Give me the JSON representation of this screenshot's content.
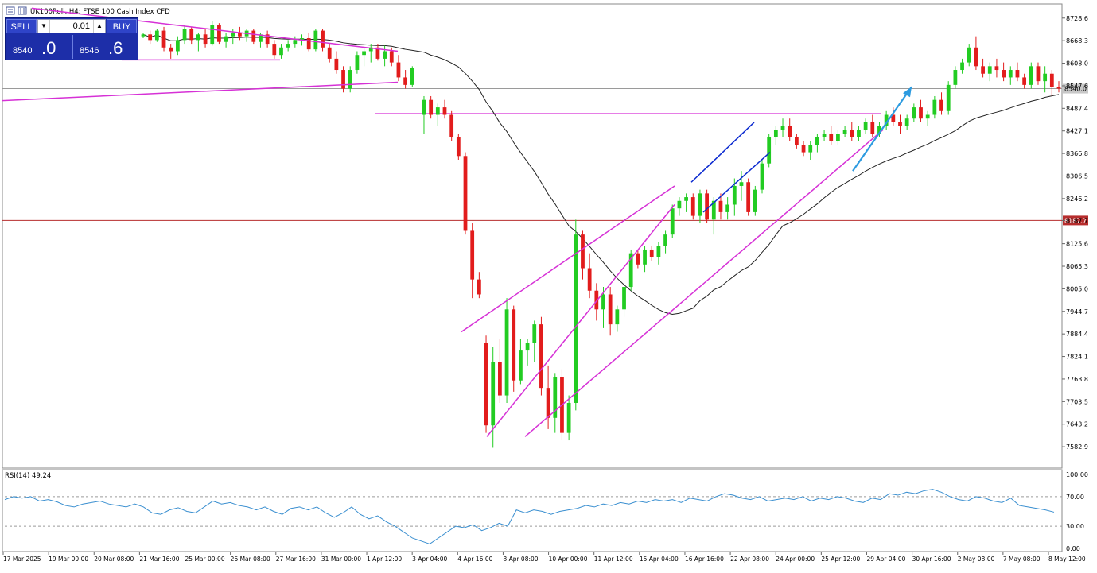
{
  "window": {
    "title": "UK100Roll, H4: FTSE 100 Cash Index CFD"
  },
  "trade_panel": {
    "sell_label": "SELL",
    "buy_label": "BUY",
    "lot": "0.01",
    "bid_main": "8540",
    "bid_tail": ".0",
    "ask_main": "8546",
    "ask_tail": ".6",
    "down_glyph": "▼",
    "up_glyph": "▲"
  },
  "colors": {
    "bull": "#22cc22",
    "bear": "#e21c1c",
    "trendline": "#d631d6",
    "channel": "#0b2ad0",
    "arrow": "#2d9be0",
    "moving_average": "#222222",
    "resistance_line": "#b72d2d",
    "current_price_line": "#9a9a9a",
    "rsi": "#3a8fd0",
    "background": "#ffffff"
  },
  "chart_data": [
    {
      "type": "candlestick",
      "title": "UK100Roll, H4: FTSE 100 Cash Index CFD",
      "ylim": [
        7530,
        8760
      ],
      "yticks": [
        "8728.6",
        "8668.3",
        "8608.0",
        "8547.6",
        "8487.4",
        "8427.1",
        "8366.8",
        "8306.5",
        "8246.2",
        "8187.7",
        "8125.6",
        "8065.3",
        "8005.0",
        "7944.7",
        "7884.4",
        "7824.1",
        "7763.8",
        "7703.5",
        "7643.2",
        "7582.9"
      ],
      "xlabels": [
        "17 Mar 2025",
        "19 Mar 00:00",
        "20 Mar 08:00",
        "21 Mar 16:00",
        "25 Mar 00:00",
        "26 Mar 08:00",
        "27 Mar 16:00",
        "31 Mar 00:00",
        "1 Apr 12:00",
        "3 Apr 04:00",
        "4 Apr 16:00",
        "8 Apr 08:00",
        "10 Apr 00:00",
        "11 Apr 12:00",
        "15 Apr 04:00",
        "16 Apr 16:00",
        "22 Apr 08:00",
        "24 Apr 00:00",
        "25 Apr 12:00",
        "29 Apr 04:00",
        "30 Apr 16:00",
        "2 May 08:00",
        "7 May 08:00",
        "8 May 12:00"
      ],
      "horizontal_lines": [
        {
          "label": "8540.0",
          "value": 8540.0,
          "kind": "current-price"
        },
        {
          "label": "8187.7",
          "value": 8187.7,
          "kind": "level"
        },
        {
          "value": 8473,
          "kind": "resistance"
        }
      ],
      "candles": [
        [
          8680,
          8690,
          8675,
          8685
        ],
        [
          8685,
          8695,
          8660,
          8670
        ],
        [
          8670,
          8700,
          8665,
          8695
        ],
        [
          8695,
          8705,
          8640,
          8650
        ],
        [
          8650,
          8660,
          8620,
          8640
        ],
        [
          8640,
          8680,
          8630,
          8670
        ],
        [
          8670,
          8710,
          8660,
          8700
        ],
        [
          8700,
          8705,
          8660,
          8670
        ],
        [
          8670,
          8690,
          8640,
          8685
        ],
        [
          8685,
          8700,
          8650,
          8660
        ],
        [
          8660,
          8720,
          8655,
          8710
        ],
        [
          8710,
          8715,
          8660,
          8665
        ],
        [
          8665,
          8690,
          8650,
          8680
        ],
        [
          8680,
          8700,
          8660,
          8690
        ],
        [
          8690,
          8705,
          8670,
          8680
        ],
        [
          8680,
          8700,
          8665,
          8695
        ],
        [
          8695,
          8700,
          8660,
          8665
        ],
        [
          8665,
          8690,
          8650,
          8685
        ],
        [
          8685,
          8695,
          8650,
          8660
        ],
        [
          8660,
          8670,
          8620,
          8630
        ],
        [
          8630,
          8660,
          8620,
          8650
        ],
        [
          8650,
          8670,
          8640,
          8660
        ],
        [
          8660,
          8680,
          8650,
          8670
        ],
        [
          8670,
          8685,
          8655,
          8675
        ],
        [
          8675,
          8690,
          8640,
          8645
        ],
        [
          8645,
          8700,
          8640,
          8695
        ],
        [
          8695,
          8700,
          8640,
          8650
        ],
        [
          8650,
          8660,
          8610,
          8620
        ],
        [
          8620,
          8640,
          8580,
          8590
        ],
        [
          8590,
          8600,
          8530,
          8540
        ],
        [
          8540,
          8600,
          8530,
          8590
        ],
        [
          8590,
          8640,
          8580,
          8630
        ],
        [
          8630,
          8650,
          8600,
          8640
        ],
        [
          8640,
          8660,
          8610,
          8650
        ],
        [
          8650,
          8660,
          8615,
          8620
        ],
        [
          8620,
          8655,
          8600,
          8640
        ],
        [
          8640,
          8650,
          8600,
          8610
        ],
        [
          8610,
          8630,
          8560,
          8570
        ],
        [
          8570,
          8590,
          8540,
          8550
        ],
        [
          8550,
          8600,
          8545,
          8595
        ],
        [
          8470,
          8520,
          8420,
          8510
        ],
        [
          8510,
          8520,
          8460,
          8470
        ],
        [
          8470,
          8500,
          8440,
          8490
        ],
        [
          8490,
          8510,
          8460,
          8470
        ],
        [
          8470,
          8480,
          8400,
          8410
        ],
        [
          8410,
          8420,
          8350,
          8360
        ],
        [
          8360,
          8370,
          8150,
          8160
        ],
        [
          8160,
          8180,
          7980,
          8030
        ],
        [
          8030,
          8050,
          7980,
          7990
        ],
        [
          7860,
          7880,
          7620,
          7640
        ],
        [
          7640,
          7850,
          7580,
          7810
        ],
        [
          7810,
          7870,
          7700,
          7720
        ],
        [
          7720,
          7980,
          7700,
          7950
        ],
        [
          7950,
          7960,
          7730,
          7760
        ],
        [
          7760,
          7870,
          7750,
          7840
        ],
        [
          7840,
          7870,
          7800,
          7860
        ],
        [
          7860,
          7920,
          7810,
          7910
        ],
        [
          7910,
          7930,
          7720,
          7740
        ],
        [
          7740,
          7800,
          7630,
          7660
        ],
        [
          7660,
          7780,
          7620,
          7770
        ],
        [
          7770,
          7790,
          7600,
          7620
        ],
        [
          7620,
          7720,
          7600,
          7700
        ],
        [
          7700,
          8190,
          7680,
          8150
        ],
        [
          8150,
          8160,
          8030,
          8060
        ],
        [
          8060,
          8100,
          7980,
          8000
        ],
        [
          8000,
          8020,
          7920,
          7950
        ],
        [
          7950,
          8010,
          7900,
          7990
        ],
        [
          7990,
          8010,
          7880,
          7910
        ],
        [
          7910,
          7960,
          7890,
          7950
        ],
        [
          7950,
          8020,
          7930,
          8010
        ],
        [
          8010,
          8110,
          8000,
          8100
        ],
        [
          8100,
          8110,
          8060,
          8070
        ],
        [
          8070,
          8120,
          8050,
          8110
        ],
        [
          8110,
          8120,
          8080,
          8090
        ],
        [
          8090,
          8130,
          8070,
          8120
        ],
        [
          8120,
          8160,
          8100,
          8150
        ],
        [
          8150,
          8230,
          8140,
          8220
        ],
        [
          8220,
          8250,
          8200,
          8240
        ],
        [
          8240,
          8260,
          8210,
          8250
        ],
        [
          8250,
          8260,
          8190,
          8200
        ],
        [
          8200,
          8270,
          8180,
          8260
        ],
        [
          8260,
          8270,
          8180,
          8190
        ],
        [
          8190,
          8250,
          8150,
          8240
        ],
        [
          8240,
          8260,
          8190,
          8210
        ],
        [
          8210,
          8250,
          8190,
          8230
        ],
        [
          8230,
          8300,
          8200,
          8280
        ],
        [
          8280,
          8320,
          8240,
          8290
        ],
        [
          8290,
          8300,
          8200,
          8210
        ],
        [
          8210,
          8280,
          8200,
          8270
        ],
        [
          8270,
          8350,
          8260,
          8340
        ],
        [
          8340,
          8420,
          8330,
          8410
        ],
        [
          8410,
          8440,
          8390,
          8430
        ],
        [
          8430,
          8460,
          8410,
          8440
        ],
        [
          8440,
          8460,
          8400,
          8410
        ],
        [
          8410,
          8420,
          8380,
          8390
        ],
        [
          8390,
          8400,
          8360,
          8370
        ],
        [
          8370,
          8400,
          8350,
          8390
        ],
        [
          8390,
          8420,
          8370,
          8410
        ],
        [
          8410,
          8430,
          8400,
          8420
        ],
        [
          8420,
          8440,
          8390,
          8400
        ],
        [
          8400,
          8430,
          8390,
          8420
        ],
        [
          8420,
          8440,
          8410,
          8430
        ],
        [
          8430,
          8450,
          8400,
          8410
        ],
        [
          8410,
          8440,
          8400,
          8430
        ],
        [
          8430,
          8460,
          8420,
          8450
        ],
        [
          8450,
          8470,
          8410,
          8420
        ],
        [
          8420,
          8450,
          8410,
          8440
        ],
        [
          8440,
          8480,
          8430,
          8470
        ],
        [
          8470,
          8490,
          8440,
          8450
        ],
        [
          8450,
          8470,
          8420,
          8440
        ],
        [
          8440,
          8470,
          8430,
          8460
        ],
        [
          8460,
          8500,
          8450,
          8490
        ],
        [
          8490,
          8510,
          8450,
          8460
        ],
        [
          8460,
          8480,
          8440,
          8470
        ],
        [
          8470,
          8520,
          8460,
          8510
        ],
        [
          8510,
          8530,
          8470,
          8480
        ],
        [
          8480,
          8560,
          8470,
          8550
        ],
        [
          8550,
          8600,
          8540,
          8590
        ],
        [
          8590,
          8620,
          8580,
          8610
        ],
        [
          8610,
          8660,
          8600,
          8650
        ],
        [
          8650,
          8680,
          8590,
          8600
        ],
        [
          8600,
          8620,
          8570,
          8580
        ],
        [
          8580,
          8610,
          8560,
          8600
        ],
        [
          8600,
          8620,
          8570,
          8590
        ],
        [
          8590,
          8610,
          8560,
          8570
        ],
        [
          8570,
          8600,
          8550,
          8590
        ],
        [
          8590,
          8610,
          8560,
          8570
        ],
        [
          8570,
          8580,
          8540,
          8550
        ],
        [
          8550,
          8610,
          8540,
          8600
        ],
        [
          8600,
          8610,
          8550,
          8560
        ],
        [
          8560,
          8600,
          8530,
          8580
        ],
        [
          8580,
          8590,
          8520,
          8545
        ],
        [
          8545,
          8560,
          8530,
          8540
        ]
      ]
    },
    {
      "type": "line",
      "title": "RSI(14) 49.24",
      "ylim": [
        0,
        100
      ],
      "yticks": [
        "100.00",
        "70.00",
        "30.00",
        "0.00"
      ],
      "levels": [
        70,
        30
      ],
      "series": [
        {
          "values": [
            66,
            70,
            68,
            70,
            64,
            66,
            63,
            58,
            56,
            60,
            62,
            64,
            60,
            58,
            56,
            60,
            56,
            48,
            46,
            52,
            55,
            50,
            48,
            56,
            64,
            60,
            62,
            58,
            56,
            52,
            56,
            50,
            46,
            54,
            56,
            52,
            56,
            48,
            42,
            48,
            56,
            46,
            40,
            44,
            36,
            30,
            22,
            14,
            10,
            6,
            14,
            22,
            30,
            28,
            32,
            24,
            28,
            34,
            30,
            52,
            48,
            52,
            50,
            46,
            50,
            52,
            54,
            58,
            56,
            60,
            58,
            62,
            60,
            64,
            62,
            66,
            64,
            66,
            62,
            68,
            66,
            64,
            70,
            74,
            72,
            68,
            66,
            70,
            64,
            66,
            68,
            66,
            70,
            64,
            68,
            66,
            70,
            68,
            64,
            62,
            68,
            66,
            74,
            72,
            76,
            74,
            78,
            80,
            76,
            70,
            66,
            64,
            70,
            68,
            64,
            62,
            68,
            58,
            56,
            54,
            52,
            49
          ]
        }
      ]
    }
  ]
}
